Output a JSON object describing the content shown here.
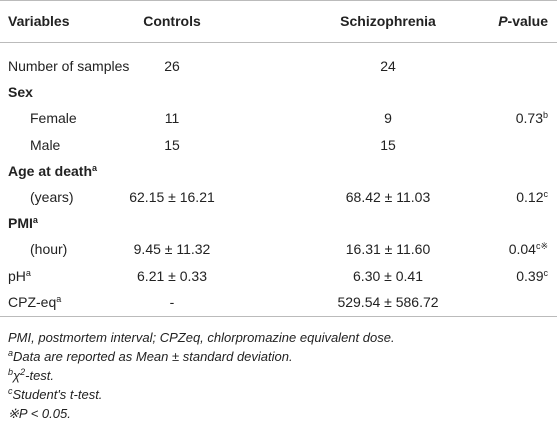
{
  "table": {
    "header": [
      "Variables",
      "Controls",
      "Schizophrenia",
      {
        "italic": "P",
        "text": "-value"
      }
    ],
    "rows": [
      {
        "cells": [
          "Number of samples",
          "26",
          "24"
        ]
      },
      {
        "cells": [
          "Sex"
        ],
        "bold": true
      },
      {
        "cells": [
          "Female",
          "11",
          "9",
          {
            "text": "0.73",
            "sup": "b"
          }
        ],
        "indent": true
      },
      {
        "cells": [
          "Male",
          "15",
          "15"
        ],
        "indent": true
      },
      {
        "cells": [
          {
            "text": "Age at death",
            "sup": "a"
          }
        ],
        "bold": true
      },
      {
        "cells": [
          "(years)",
          "62.15 ± 16.21",
          "68.42 ± 11.03",
          {
            "text": "0.12",
            "sup": "c"
          }
        ],
        "indent": true
      },
      {
        "cells": [
          {
            "text": "PMI",
            "sup": "a"
          }
        ],
        "bold": true
      },
      {
        "cells": [
          "(hour)",
          "9.45 ± 11.32",
          "16.31 ± 11.60",
          {
            "text": "0.04",
            "sup": "c※"
          }
        ],
        "indent": true
      },
      {
        "cells": [
          {
            "text": "pH",
            "sup": "a"
          },
          "6.21 ± 0.33",
          "6.30 ± 0.41",
          {
            "text": "0.39",
            "sup": "c"
          }
        ]
      },
      {
        "cells": [
          {
            "text": "CPZ-eq",
            "sup": "a"
          },
          "-",
          "529.54 ± 586.72"
        ]
      }
    ]
  },
  "footnotes": [
    {
      "text": "PMI, postmortem interval; CPZeq, chlorpromazine equivalent dose."
    },
    {
      "sup": "a",
      "text": "Data are reported as Mean ± standard deviation."
    },
    {
      "sup": "b",
      "text": "χ",
      "sup2": "2",
      "text2": "-test."
    },
    {
      "sup": "c",
      "text": "Student's t-test."
    },
    {
      "symbol": "※",
      "text": "P < 0.05."
    }
  ]
}
